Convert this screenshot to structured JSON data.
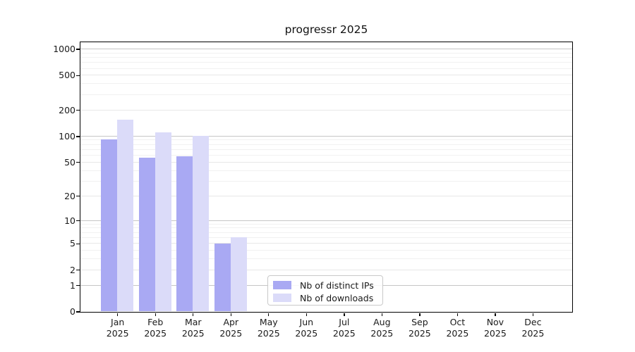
{
  "figure": {
    "title": "progressr 2025"
  },
  "chart_data": {
    "type": "bar",
    "title": "progressr 2025",
    "x_categories": [
      "Jan",
      "Feb",
      "Mar",
      "Apr",
      "May",
      "Jun",
      "Jul",
      "Aug",
      "Sep",
      "Oct",
      "Nov",
      "Dec"
    ],
    "x_year": "2025",
    "series": [
      {
        "name": "Nb of distinct IPs",
        "color": "#a9a9f3",
        "values": [
          92,
          56,
          58,
          5,
          0,
          0,
          0,
          0,
          0,
          0,
          0,
          0
        ]
      },
      {
        "name": "Nb of downloads",
        "color": "#dbdbf9",
        "values": [
          155,
          110,
          100,
          6,
          0,
          0,
          0,
          0,
          0,
          0,
          0,
          0
        ]
      }
    ],
    "y_ticks": [
      0,
      1,
      2,
      5,
      10,
      20,
      50,
      100,
      200,
      500,
      1000
    ],
    "y_scale": "log10(value+1)",
    "ylim": [
      0,
      1200
    ],
    "grid": true,
    "legend_position": "lower center-left",
    "colors": {
      "major_grid": "#c6c6c6",
      "mid_grid": "#e7e7e7",
      "minor_grid": "#f1f1f1",
      "spine": "#000000",
      "text": "#1a1a1a"
    }
  }
}
